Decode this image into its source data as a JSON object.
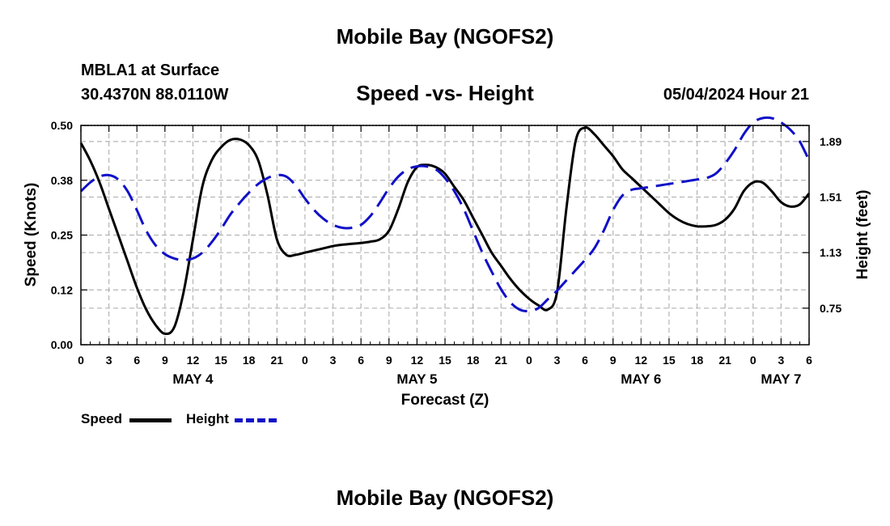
{
  "header": {
    "title": "Mobile Bay (NGOFS2)",
    "station": "MBLA1 at Surface",
    "coords": "30.4370N  88.0110W",
    "subtitle": "Speed -vs- Height",
    "datetime": "05/04/2024 Hour 21"
  },
  "footer": {
    "title": "Mobile Bay (NGOFS2)"
  },
  "legend": {
    "speed_label": "Speed",
    "height_label": "Height"
  },
  "colors": {
    "speed": "#000000",
    "height": "#1010c8",
    "grid": "#b4b4b4"
  },
  "chart_data": {
    "type": "line",
    "title": "Speed -vs- Height",
    "xlabel": "Forecast (Z)",
    "ylabel": "Speed (Knots)",
    "y2label": "Height (feet)",
    "xlim": [
      0,
      78
    ],
    "ylim": [
      0,
      0.5
    ],
    "y2lim": [
      0.5,
      2.0
    ],
    "y_ticks": [
      "0.00",
      "0.12",
      "0.25",
      "0.38",
      "0.50"
    ],
    "y2_ticks": [
      "0.75",
      "1.13",
      "1.51",
      "1.89"
    ],
    "x_tick_labels": [
      "0",
      "3",
      "6",
      "9",
      "12",
      "15",
      "18",
      "21",
      "0",
      "3",
      "6",
      "9",
      "12",
      "15",
      "18",
      "21",
      "0",
      "3",
      "6",
      "9",
      "12",
      "15",
      "18",
      "21",
      "0",
      "3",
      "6"
    ],
    "date_labels": [
      {
        "x": 12,
        "label": "MAY 4"
      },
      {
        "x": 36,
        "label": "MAY 5"
      },
      {
        "x": 60,
        "label": "MAY 6"
      },
      {
        "x": 75,
        "label": "MAY 7"
      }
    ],
    "grid": true,
    "legend_position": "bottom-left",
    "series": [
      {
        "name": "Speed",
        "axis": "left",
        "style": "solid",
        "x": [
          0,
          1,
          2,
          3,
          4,
          5,
          6,
          7,
          8,
          9,
          10,
          11,
          12,
          13,
          14,
          15,
          16,
          17,
          18,
          19,
          20,
          21,
          22,
          23,
          24,
          25,
          26,
          27,
          28,
          29,
          30,
          31,
          32,
          33,
          34,
          35,
          36,
          37,
          38,
          39,
          40,
          41,
          42,
          43,
          44,
          45,
          46,
          47,
          48,
          49,
          50,
          51,
          52,
          53,
          54,
          55,
          56,
          57,
          58,
          59,
          60,
          61,
          62,
          63,
          64,
          65,
          66,
          67,
          68,
          69,
          70,
          71,
          72,
          73,
          74,
          75,
          76,
          77,
          78
        ],
        "values": [
          0.46,
          0.42,
          0.37,
          0.31,
          0.25,
          0.19,
          0.13,
          0.08,
          0.045,
          0.025,
          0.04,
          0.12,
          0.24,
          0.36,
          0.42,
          0.45,
          0.467,
          0.468,
          0.455,
          0.42,
          0.34,
          0.24,
          0.205,
          0.205,
          0.21,
          0.215,
          0.22,
          0.225,
          0.228,
          0.23,
          0.232,
          0.235,
          0.24,
          0.26,
          0.31,
          0.37,
          0.405,
          0.41,
          0.405,
          0.39,
          0.36,
          0.33,
          0.29,
          0.25,
          0.21,
          0.18,
          0.15,
          0.125,
          0.105,
          0.09,
          0.08,
          0.12,
          0.31,
          0.465,
          0.495,
          0.48,
          0.455,
          0.43,
          0.4,
          0.38,
          0.36,
          0.34,
          0.32,
          0.3,
          0.285,
          0.275,
          0.27,
          0.27,
          0.273,
          0.285,
          0.31,
          0.35,
          0.37,
          0.37,
          0.35,
          0.325,
          0.315,
          0.32,
          0.345
        ]
      },
      {
        "name": "Height",
        "axis": "right",
        "style": "dashed",
        "x": [
          0,
          1,
          2,
          3,
          4,
          5,
          6,
          7,
          8,
          9,
          10,
          11,
          12,
          13,
          14,
          15,
          16,
          17,
          18,
          19,
          20,
          21,
          22,
          23,
          24,
          25,
          26,
          27,
          28,
          29,
          30,
          31,
          32,
          33,
          34,
          35,
          36,
          37,
          38,
          39,
          40,
          41,
          42,
          43,
          44,
          45,
          46,
          47,
          48,
          49,
          50,
          51,
          52,
          53,
          54,
          55,
          56,
          57,
          58,
          59,
          60,
          61,
          62,
          63,
          64,
          65,
          66,
          67,
          68,
          69,
          70,
          71,
          72,
          73,
          74,
          75,
          76,
          77,
          78
        ],
        "values": [
          1.55,
          1.61,
          1.65,
          1.66,
          1.63,
          1.55,
          1.42,
          1.28,
          1.18,
          1.12,
          1.09,
          1.08,
          1.09,
          1.13,
          1.2,
          1.29,
          1.39,
          1.47,
          1.54,
          1.6,
          1.64,
          1.66,
          1.65,
          1.59,
          1.5,
          1.42,
          1.36,
          1.32,
          1.3,
          1.3,
          1.32,
          1.38,
          1.47,
          1.57,
          1.65,
          1.7,
          1.72,
          1.72,
          1.7,
          1.64,
          1.55,
          1.43,
          1.28,
          1.13,
          1.0,
          0.88,
          0.79,
          0.74,
          0.73,
          0.75,
          0.81,
          0.87,
          0.94,
          1.01,
          1.08,
          1.16,
          1.28,
          1.42,
          1.52,
          1.56,
          1.57,
          1.58,
          1.59,
          1.6,
          1.61,
          1.62,
          1.63,
          1.64,
          1.67,
          1.74,
          1.83,
          1.94,
          2.02,
          2.05,
          2.05,
          2.02,
          1.97,
          1.89,
          1.76
        ]
      }
    ]
  }
}
